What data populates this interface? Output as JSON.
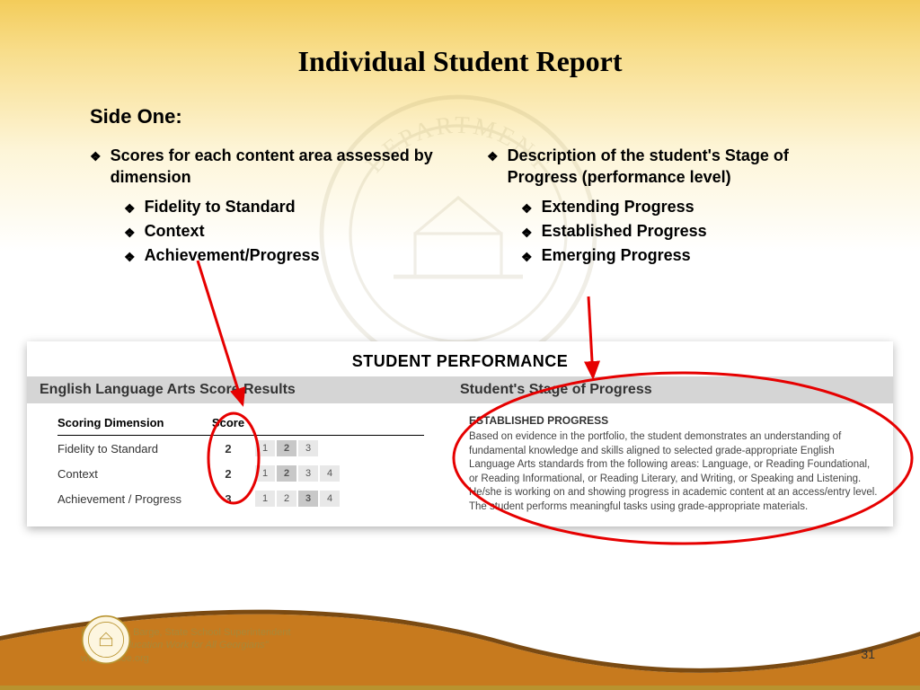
{
  "title": "Individual Student Report",
  "subtitle": "Side One:",
  "left_column": {
    "main": "Scores for each content area assessed by dimension",
    "subs": [
      "Fidelity to Standard",
      "Context",
      "Achievement/Progress"
    ]
  },
  "right_column": {
    "main": "Description of the student's Stage of Progress (performance level)",
    "subs": [
      "Extending Progress",
      "Established Progress",
      "Emerging Progress"
    ]
  },
  "panel": {
    "title": "STUDENT PERFORMANCE",
    "left_heading": "English Language Arts Score Results",
    "right_heading": "Student's Stage of Progress",
    "score_headers": {
      "dimension": "Scoring Dimension",
      "score": "Score"
    },
    "rows": [
      {
        "dim": "Fidelity to Standard",
        "score": "2",
        "max": 3,
        "active": 2
      },
      {
        "dim": "Context",
        "score": "2",
        "max": 4,
        "active": 2
      },
      {
        "dim": "Achievement / Progress",
        "score": "3",
        "max": 4,
        "active": 3
      }
    ],
    "progress_title": "ESTABLISHED PROGRESS",
    "progress_text": "Based on evidence in the portfolio, the student demonstrates an understanding of fundamental knowledge and skills aligned to selected grade-appropriate English Language Arts standards from the following areas: Language, or Reading Foundational, or Reading Informational, or Reading Literary, and Writing, or Speaking and Listening. He/she is working on and showing progress in academic content at an access/entry level. The student performs meaningful tasks using grade-appropriate materials."
  },
  "annotations": {
    "circle_color": "#e60000",
    "arrow_color": "#e60000"
  },
  "footer": {
    "name": "Dr. John D. Barge, State School Superintendent",
    "tagline": "\"Making Education Work for All Georgians\"",
    "url": "www.gadoe.org",
    "swoosh_color": "#c77a1e",
    "page": "31"
  }
}
